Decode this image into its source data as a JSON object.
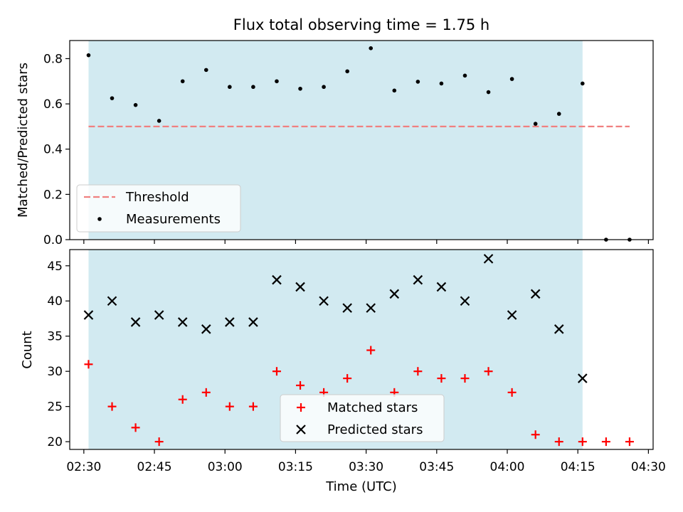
{
  "title": "Flux total observing time = 1.75 h",
  "colors": {
    "observing_span": "#add8e6",
    "threshold": "#f08080",
    "measurements": "#000000",
    "matched": "#ff0000",
    "predicted": "#000000"
  },
  "chart_data": [
    {
      "type": "scatter",
      "ylabel": "Matched/Predicted stars",
      "ylim": [
        0,
        0.88
      ],
      "yticks": [
        "0.0",
        "0.2",
        "0.4",
        "0.6",
        "0.8"
      ],
      "ytick_values": [
        0,
        0.2,
        0.4,
        0.6,
        0.8
      ],
      "observing_span": [
        "02:31",
        "04:16"
      ],
      "legend_placement": "lower-left",
      "threshold": {
        "name": "Threshold",
        "value": 0.5,
        "x_range": [
          "02:31",
          "04:26"
        ]
      },
      "series": [
        {
          "name": "Measurements",
          "x": [
            "02:31",
            "02:36",
            "02:41",
            "02:46",
            "02:51",
            "02:56",
            "03:01",
            "03:06",
            "03:11",
            "03:16",
            "03:21",
            "03:26",
            "03:31",
            "03:36",
            "03:41",
            "03:46",
            "03:51",
            "03:56",
            "04:01",
            "04:06",
            "04:11",
            "04:16",
            "04:21",
            "04:26"
          ],
          "y": [
            0.815,
            0.625,
            0.595,
            0.525,
            0.7,
            0.75,
            0.675,
            0.675,
            0.7,
            0.667,
            0.675,
            0.744,
            0.846,
            0.659,
            0.698,
            0.69,
            0.725,
            0.652,
            0.71,
            0.512,
            0.556,
            0.69,
            0.0,
            0.0
          ]
        }
      ]
    },
    {
      "type": "scatter",
      "xlabel": "Time (UTC)",
      "ylabel": "Count",
      "ylim": [
        18.9,
        47.3
      ],
      "yticks": [
        "20",
        "25",
        "30",
        "35",
        "40",
        "45"
      ],
      "ytick_values": [
        20,
        25,
        30,
        35,
        40,
        45
      ],
      "xlim": [
        "02:27",
        "04:31"
      ],
      "xticks": [
        "02:30",
        "02:45",
        "03:00",
        "03:15",
        "03:30",
        "03:45",
        "04:00",
        "04:15",
        "04:30"
      ],
      "observing_span": [
        "02:31",
        "04:16"
      ],
      "legend_placement": "lower-center",
      "series": [
        {
          "name": "Matched stars",
          "marker": "+",
          "x": [
            "02:31",
            "02:36",
            "02:41",
            "02:46",
            "02:51",
            "02:56",
            "03:01",
            "03:06",
            "03:11",
            "03:16",
            "03:21",
            "03:26",
            "03:31",
            "03:36",
            "03:41",
            "03:46",
            "03:51",
            "03:56",
            "04:01",
            "04:06",
            "04:11",
            "04:16",
            "04:21",
            "04:26"
          ],
          "y": [
            31,
            25,
            22,
            20,
            26,
            27,
            25,
            25,
            30,
            28,
            27,
            29,
            33,
            27,
            30,
            29,
            29,
            30,
            27,
            21,
            20,
            20,
            20,
            20
          ]
        },
        {
          "name": "Predicted stars",
          "marker": "x",
          "x": [
            "02:31",
            "02:36",
            "02:41",
            "02:46",
            "02:51",
            "02:56",
            "03:01",
            "03:06",
            "03:11",
            "03:16",
            "03:21",
            "03:26",
            "03:31",
            "03:36",
            "03:41",
            "03:46",
            "03:51",
            "03:56",
            "04:01",
            "04:06",
            "04:11",
            "04:16"
          ],
          "y": [
            38,
            40,
            37,
            38,
            37,
            36,
            37,
            37,
            43,
            42,
            40,
            39,
            39,
            41,
            43,
            42,
            40,
            46,
            38,
            41,
            36,
            29
          ]
        }
      ]
    }
  ]
}
